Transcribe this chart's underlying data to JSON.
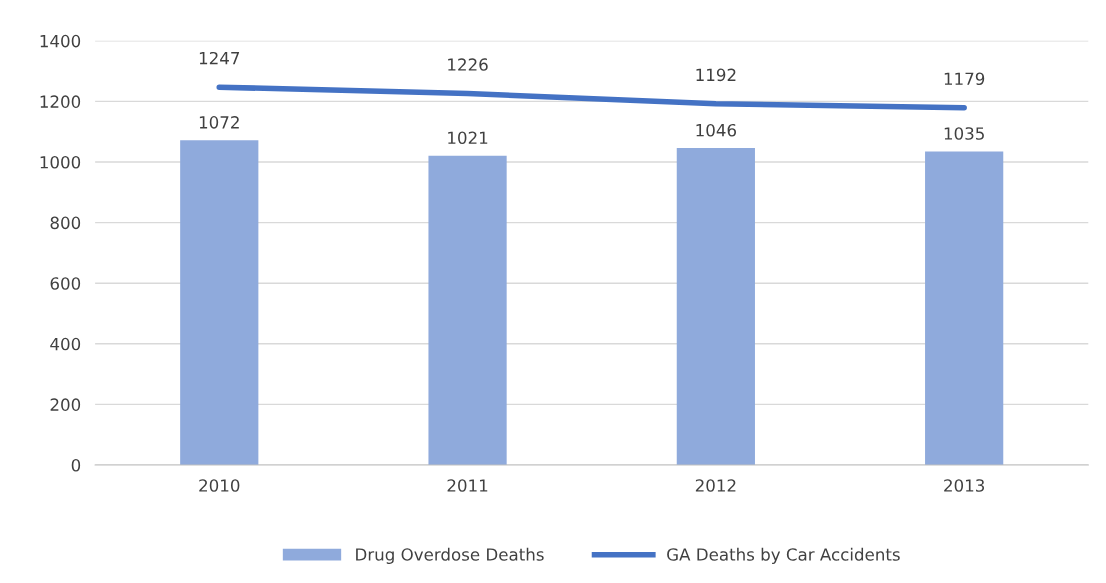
{
  "chart_data": {
    "type": "bar",
    "categories": [
      "2010",
      "2011",
      "2012",
      "2013"
    ],
    "series": [
      {
        "name": "Drug Overdose Deaths",
        "color": "#8faadc",
        "values": [
          1072,
          1021,
          1046,
          1035
        ]
      },
      {
        "name": "GA Deaths by Car Accidents",
        "type": "line",
        "color": "#4472c4",
        "values": [
          1247,
          1226,
          1192,
          1179
        ]
      }
    ],
    "ylim": [
      0,
      1400
    ],
    "yticks": [
      0,
      200,
      400,
      600,
      800,
      1000,
      1200,
      1400
    ],
    "grid": "y",
    "legend": "bottom",
    "data_labels": true,
    "marker": "none"
  }
}
